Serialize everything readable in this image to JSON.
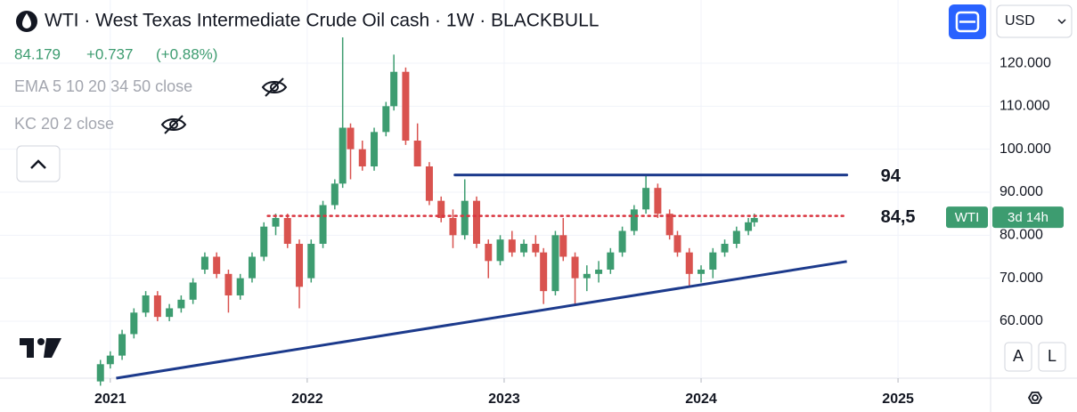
{
  "chart_data": {
    "type": "candlestick",
    "title": "WTI · West Texas Intermediate Crude Oil cash · 1W · BLACKBULL",
    "price": 84.179,
    "change": "+0.737",
    "change_pct": "(+0.88%)",
    "indicators": [
      "EMA 5 10 20 34 50 close",
      "KC 20 2 close"
    ],
    "currency": "USD",
    "symbol_tag": "WTI",
    "countdown": "3d 14h",
    "buttons": [
      "A",
      "L"
    ],
    "up_color": "#3d9c70",
    "down_color": "#d9534f",
    "grid": true,
    "xlim": [
      2020.44,
      2025.47
    ],
    "xticks": [
      2021,
      2022,
      2023,
      2024,
      2025
    ],
    "ylim": [
      46.75,
      134.7
    ],
    "yticks": [
      {
        "value": 60,
        "label": "60.000"
      },
      {
        "value": 70,
        "label": "70.000"
      },
      {
        "value": 80,
        "label": "80.000"
      },
      {
        "value": 90,
        "label": "90.000"
      },
      {
        "value": 100,
        "label": "100.000"
      },
      {
        "value": 110,
        "label": "110.000"
      },
      {
        "value": 120,
        "label": "120.000"
      }
    ],
    "candles": {
      "x": [
        2020.95,
        2021.0,
        2021.06,
        2021.12,
        2021.18,
        2021.24,
        2021.3,
        2021.36,
        2021.42,
        2021.48,
        2021.54,
        2021.6,
        2021.66,
        2021.72,
        2021.78,
        2021.84,
        2021.9,
        2021.96,
        2022.02,
        2022.08,
        2022.14,
        2022.18,
        2022.22,
        2022.28,
        2022.34,
        2022.4,
        2022.44,
        2022.5,
        2022.56,
        2022.62,
        2022.68,
        2022.74,
        2022.8,
        2022.86,
        2022.92,
        2022.98,
        2023.04,
        2023.1,
        2023.16,
        2023.2,
        2023.26,
        2023.3,
        2023.36,
        2023.42,
        2023.48,
        2023.54,
        2023.6,
        2023.66,
        2023.72,
        2023.78,
        2023.84,
        2023.88,
        2023.94,
        2024.0,
        2024.06,
        2024.12,
        2024.18,
        2024.24,
        2024.27
      ],
      "open": [
        46,
        50,
        52,
        57,
        62,
        66,
        61,
        63,
        65,
        72,
        75,
        71,
        66,
        70,
        75,
        82,
        84,
        78,
        70,
        78,
        87,
        92,
        105,
        100,
        96,
        104,
        110,
        118,
        102,
        96,
        88,
        84,
        80,
        88,
        78,
        74,
        79,
        76,
        78,
        76,
        67,
        80,
        75,
        70,
        71,
        72,
        76,
        81,
        86,
        91,
        85,
        80,
        76,
        71,
        72,
        76,
        78,
        81,
        83
      ],
      "high": [
        51,
        53,
        58,
        63,
        67,
        67,
        64,
        66,
        70,
        76,
        76,
        72,
        71,
        76,
        83,
        85,
        85,
        79,
        79,
        88,
        93,
        126,
        106,
        102,
        105,
        111,
        122,
        119,
        106,
        97,
        89,
        86,
        93,
        89,
        79,
        80,
        81,
        79,
        80,
        77,
        81,
        84,
        76,
        73,
        74,
        77,
        82,
        87,
        94,
        92,
        86,
        81,
        77,
        73,
        77,
        79,
        82,
        84,
        85
      ],
      "low": [
        45,
        49,
        51,
        56,
        61,
        60,
        60,
        62,
        64,
        71,
        70,
        62,
        65,
        69,
        74,
        80,
        77,
        63,
        69,
        77,
        86,
        91,
        93,
        95,
        95,
        103,
        109,
        101,
        96,
        87,
        83,
        77,
        79,
        77,
        70,
        73,
        75,
        75,
        75,
        64,
        66,
        74,
        64,
        67,
        69,
        71,
        75,
        80,
        85,
        84,
        79,
        75,
        68,
        69,
        70,
        75,
        77,
        80,
        82
      ],
      "close": [
        50,
        52,
        57,
        62,
        66,
        61,
        63,
        65,
        69,
        75,
        71,
        66,
        70,
        75,
        82,
        84,
        78,
        68,
        78,
        87,
        92,
        105,
        100,
        96,
        104,
        110,
        118,
        102,
        96,
        88,
        84,
        80,
        88,
        78,
        74,
        79,
        76,
        78,
        76,
        67,
        80,
        75,
        70,
        71,
        72,
        76,
        81,
        86,
        91,
        85,
        80,
        76,
        71,
        72,
        76,
        78,
        81,
        83,
        84
      ]
    },
    "levels": [
      {
        "x": [
          2022.75,
          2024.74
        ],
        "value": 94,
        "color": "#1c3a8c",
        "style": "solid"
      },
      {
        "x": [
          2021.8,
          2024.74
        ],
        "value": 84.5,
        "value_label": "84,5",
        "color": "#d9343f",
        "style": "dotted"
      }
    ],
    "trendline": {
      "x": [
        2021.03,
        2024.74
      ],
      "y": [
        46.75,
        73.9
      ],
      "color": "#1c3a8c"
    }
  }
}
